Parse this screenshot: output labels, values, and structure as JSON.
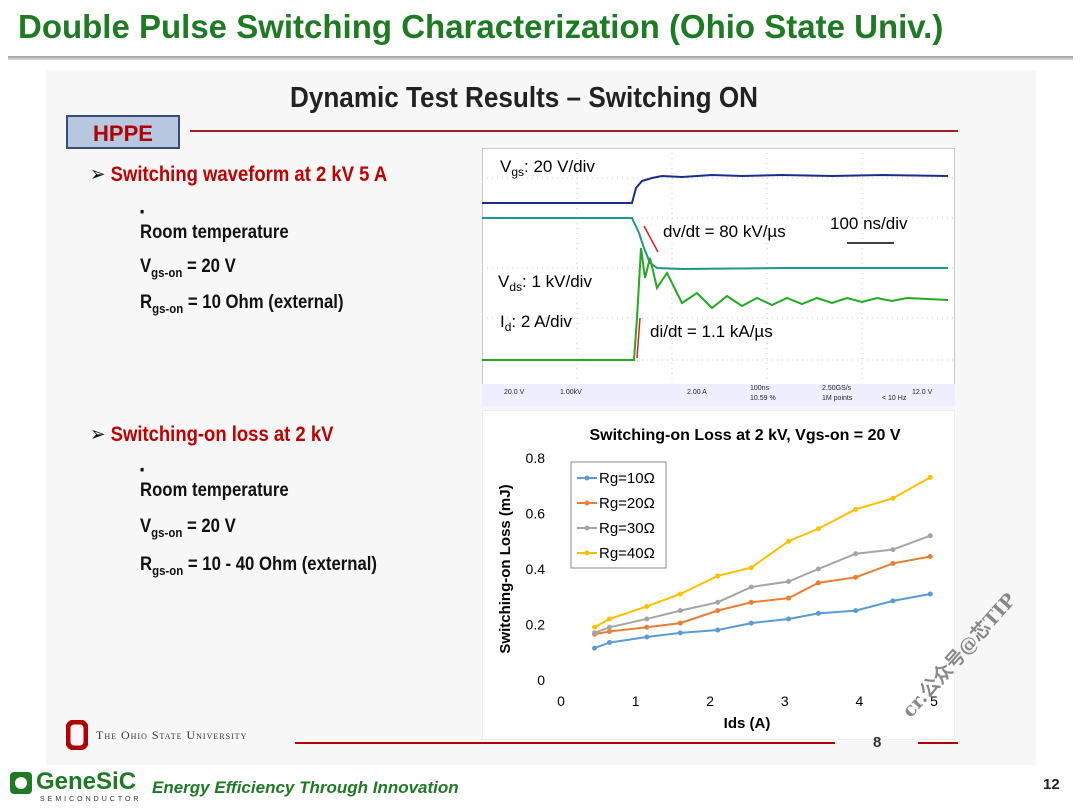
{
  "header": {
    "title": "Double Pulse Switching Characterization (Ohio State Univ.)"
  },
  "slide": {
    "title": "Dynamic Test Results – Switching ON",
    "logo": "HPPE",
    "section1": {
      "heading": "Switching waveform at 2 kV 5 A",
      "bullets": [
        [
          {
            "text": "Room temperature"
          }
        ],
        [
          {
            "text": "V"
          },
          {
            "sub": "gs-on"
          },
          {
            "text": " = 20 V"
          }
        ],
        [
          {
            "text": "R"
          },
          {
            "sub": "gs-on"
          },
          {
            "text": " = 10 Ohm (external)"
          }
        ]
      ]
    },
    "section2": {
      "heading": "Switching-on loss at 2 kV",
      "bullets": [
        [
          {
            "text": "Room temperature"
          }
        ],
        [
          {
            "text": "V"
          },
          {
            "sub": "gs-on"
          },
          {
            "text": " = 20 V"
          }
        ],
        [
          {
            "text": "R"
          },
          {
            "sub": "gs-on"
          },
          {
            "text": " = 10 - 40 Ohm (external)"
          }
        ]
      ]
    },
    "scope": {
      "annotations": [
        [
          {
            "text": "V"
          },
          {
            "sub": "gs"
          },
          {
            "text": ": 20 V/div"
          }
        ],
        [
          {
            "text": "dv/dt = 80 kV/µs"
          }
        ],
        [
          {
            "text": "100 ns/div"
          }
        ],
        [
          {
            "text": "V"
          },
          {
            "sub": "ds"
          },
          {
            "text": ": 1 kV/div"
          }
        ],
        [
          {
            "text": "I"
          },
          {
            "sub": "d"
          },
          {
            "text": ": 2 A/div"
          }
        ],
        [
          {
            "text": "di/dt = 1.1 kA/µs"
          }
        ]
      ],
      "status": [
        "20.0 V",
        "1.00kV",
        "2.00 A",
        "100ns",
        "10.59 %",
        "2.50GS/s",
        "1M points",
        "12.0 V",
        "< 10 Hz"
      ]
    },
    "university": "The Ohio State University",
    "page": "8"
  },
  "chart_data": {
    "type": "line",
    "title": "Switching-on  Loss at 2 kV, Vgs-on = 20 V",
    "x_label": "Ids (A)",
    "y_label": "Switching-on Loss (mJ)",
    "x": [
      0.45,
      0.65,
      1.15,
      1.6,
      2.1,
      2.55,
      3.05,
      3.45,
      3.95,
      4.45,
      4.95
    ],
    "series": [
      {
        "name": "Rg=10Ω",
        "color": "#5b9bd5",
        "values": [
          0.115,
          0.135,
          0.155,
          0.17,
          0.18,
          0.205,
          0.22,
          0.24,
          0.25,
          0.285,
          0.31
        ]
      },
      {
        "name": "Rg=20Ω",
        "color": "#ed7d31",
        "values": [
          0.165,
          0.175,
          0.19,
          0.205,
          0.25,
          0.28,
          0.295,
          0.35,
          0.37,
          0.42,
          0.445
        ]
      },
      {
        "name": "Rg=30Ω",
        "color": "#a5a5a5",
        "values": [
          0.17,
          0.19,
          0.22,
          0.25,
          0.28,
          0.335,
          0.355,
          0.4,
          0.455,
          0.47,
          0.52
        ]
      },
      {
        "name": "Rg=40Ω",
        "color": "#ffc000",
        "values": [
          0.19,
          0.22,
          0.265,
          0.31,
          0.375,
          0.405,
          0.5,
          0.545,
          0.615,
          0.655,
          0.73
        ]
      }
    ],
    "xlim": [
      0,
      5
    ],
    "xticks": [
      0,
      1,
      2,
      3,
      4,
      5
    ],
    "ylim": [
      0,
      0.8
    ],
    "yticks": [
      0,
      0.2,
      0.4,
      0.6,
      0.8
    ],
    "legend": "upper left"
  },
  "footer": {
    "brand": "GeneSiC",
    "brand_sub": "SEMICONDUCTOR",
    "tagline": "Energy Efficiency Through Innovation",
    "page": "12",
    "watermark": "cr.公众号@芯TIP"
  }
}
